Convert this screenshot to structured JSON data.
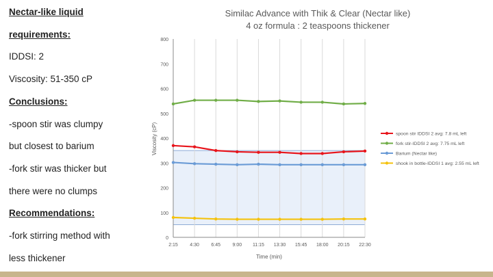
{
  "left_panel": {
    "lines": [
      {
        "text": "Nectar-like liquid",
        "heading": true
      },
      {
        "text": "requirements:",
        "heading": true
      },
      {
        "text": "IDDSI: 2",
        "heading": false
      },
      {
        "text": "Viscosity: 51-350 cP",
        "heading": false
      },
      {
        "text": "Conclusions:",
        "heading": true
      },
      {
        "text": "-spoon stir was clumpy",
        "heading": false
      },
      {
        "text": "but closest to barium",
        "heading": false
      },
      {
        "text": "-fork stir was thicker but",
        "heading": false
      },
      {
        "text": "there were no clumps",
        "heading": false
      },
      {
        "text": "Recommendations:",
        "heading": true
      },
      {
        "text": "-fork stirring method with",
        "heading": false
      },
      {
        "text": "less thickener",
        "heading": false
      }
    ]
  },
  "chart_data": {
    "type": "line",
    "title": "Similac Advance with Thik & Clear (Nectar like)",
    "subtitle": "4 oz formula : 2 teaspoons thickener",
    "xlabel": "Time (min)",
    "ylabel": "Viscosity (cP)",
    "x": [
      "2:15",
      "4:30",
      "6:45",
      "9:00",
      "11:15",
      "13:30",
      "15:45",
      "18:00",
      "20:15",
      "22:30"
    ],
    "ylim": [
      0,
      800
    ],
    "yticks": [
      0,
      100,
      200,
      300,
      400,
      500,
      600,
      700,
      800
    ],
    "yticklabels": [
      "0",
      "100",
      "200",
      "300",
      "400",
      "500",
      "600",
      "700",
      "800"
    ],
    "shaded_range": [
      51,
      350
    ],
    "grid": "vertical",
    "legend_position": "right",
    "series": [
      {
        "name": "spoon stir IDDSI 2 avg: 7.8 mL left",
        "color": "#e8141b",
        "values": [
          370,
          365,
          350,
          345,
          343,
          343,
          338,
          338,
          345,
          348
        ]
      },
      {
        "name": "fork stir-IDDSI 2 avg: 7.75 mL left",
        "color": "#70ad47",
        "values": [
          538,
          553,
          553,
          553,
          548,
          550,
          545,
          545,
          538,
          540
        ]
      },
      {
        "name": "Barium (Nectar like)",
        "color": "#6a9bd6",
        "values": [
          302,
          297,
          295,
          293,
          295,
          293,
          293,
          293,
          293,
          293
        ]
      },
      {
        "name": "shook in bottle-IDDSI 1 avg: 2.55 mL left",
        "color": "#f4c20d",
        "values": [
          80,
          77,
          74,
          73,
          73,
          73,
          73,
          73,
          74,
          74
        ]
      }
    ],
    "colors": {
      "shade_fill": "#e9f0fa",
      "shade_border": "#8eaad6",
      "grid": "#d9d9d9",
      "axis": "#888888"
    }
  }
}
